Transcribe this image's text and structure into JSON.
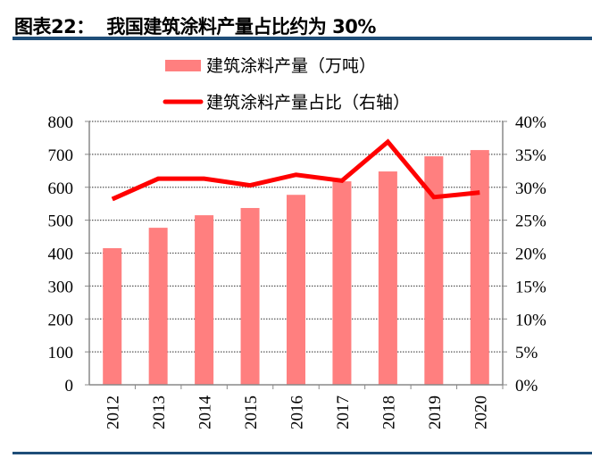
{
  "title": "图表22：  我国建筑涂料产量占比约为 30%",
  "colors": {
    "bar": "#ff7f7f",
    "line": "#ff0000",
    "rule": "#1f4e79"
  },
  "chart_data": {
    "type": "bar+line",
    "categories": [
      "2012",
      "2013",
      "2014",
      "2015",
      "2016",
      "2017",
      "2018",
      "2019",
      "2020"
    ],
    "series": [
      {
        "name": "建筑涂料产量（万吨）",
        "type": "bar",
        "axis": "left",
        "values": [
          415,
          477,
          515,
          537,
          577,
          618,
          648,
          694,
          713
        ]
      },
      {
        "name": "建筑涂料产量占比（右轴）",
        "type": "line",
        "axis": "right",
        "values": [
          28.2,
          31.3,
          31.3,
          30.3,
          31.9,
          31.0,
          36.9,
          28.5,
          29.2
        ]
      }
    ],
    "left_axis": {
      "min": 0,
      "max": 800,
      "ticks": [
        "0",
        "100",
        "200",
        "300",
        "400",
        "500",
        "600",
        "700",
        "800"
      ]
    },
    "right_axis": {
      "min": 0,
      "max": 40,
      "ticks": [
        "0%",
        "5%",
        "10%",
        "15%",
        "20%",
        "25%",
        "30%",
        "35%",
        "40%"
      ]
    },
    "grid": true,
    "legend": "top-center"
  }
}
